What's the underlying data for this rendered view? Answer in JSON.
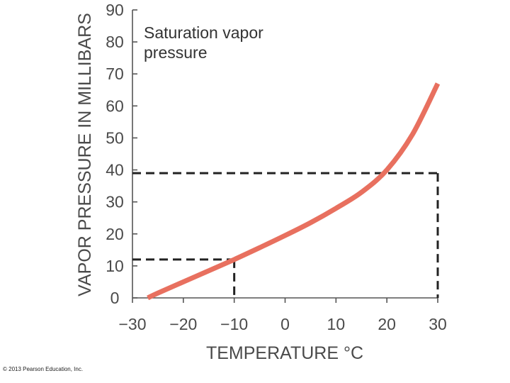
{
  "chart_data": {
    "type": "line",
    "title_lines": [
      "Saturation vapor",
      "pressure"
    ],
    "xlabel": "TEMPERATURE °C",
    "ylabel": "VAPOR PRESSURE IN MILLIBARS",
    "xlim": [
      -30,
      30
    ],
    "ylim": [
      0,
      90
    ],
    "x_ticks": [
      -30,
      -20,
      -10,
      0,
      10,
      20,
      30
    ],
    "x_tick_labels": [
      "−30",
      "−20",
      "−10",
      "0",
      "10",
      "20",
      "30"
    ],
    "y_ticks": [
      0,
      10,
      20,
      30,
      40,
      50,
      60,
      70,
      80,
      90
    ],
    "y_tick_labels": [
      "0",
      "10",
      "20",
      "30",
      "40",
      "50",
      "60",
      "70",
      "80",
      "90"
    ],
    "series": [
      {
        "name": "Saturation vapor pressure",
        "color": "#e8705f",
        "x": [
          -27,
          -25,
          -20,
          -15,
          -10,
          -5,
          0,
          5,
          10,
          15,
          20,
          25,
          30
        ],
        "y": [
          0,
          1.5,
          5,
          8.5,
          12,
          15.7,
          19.5,
          23.5,
          28,
          33,
          40,
          51,
          67
        ]
      }
    ],
    "reference_lines": [
      {
        "x": -10,
        "y": 12,
        "style": "dashed"
      },
      {
        "x": 30,
        "y": 39,
        "style": "dashed"
      }
    ]
  },
  "footer": {
    "copyright": "© 2013 Pearson Education, Inc."
  },
  "colors": {
    "curve": "#e8705f",
    "axis": "#555555",
    "dashed": "#222222",
    "text": "#4a4a4a"
  }
}
